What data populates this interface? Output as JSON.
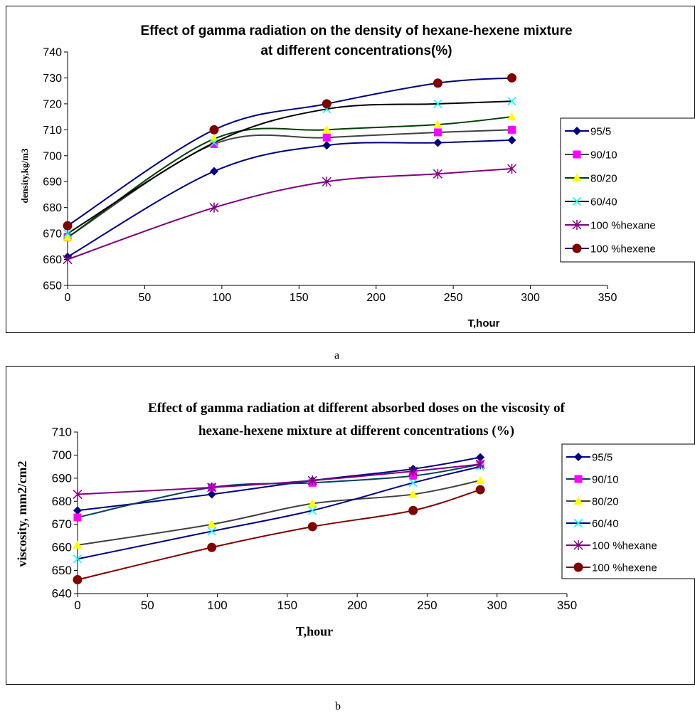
{
  "captions": {
    "a": "a",
    "b": "b"
  },
  "chart_data": [
    {
      "id": "a",
      "type": "line",
      "title_lines": [
        "Effect of gamma radiation on the density of hexane-hexene mixture",
        "at different concentrations(%)"
      ],
      "xlabel": "T,hour",
      "ylabel": "density,kg/m3",
      "xlim": [
        0,
        350
      ],
      "ylim": [
        650,
        740
      ],
      "xticks": [
        0,
        50,
        100,
        150,
        200,
        250,
        300,
        350
      ],
      "yticks": [
        650,
        660,
        670,
        680,
        690,
        700,
        710,
        720,
        730,
        740
      ],
      "grid": false,
      "legend_position": "right",
      "series": [
        {
          "name": "95/5",
          "color": "#000080",
          "marker": "diamond",
          "x": [
            0,
            95,
            168,
            240,
            288
          ],
          "y": [
            661,
            694,
            704,
            705,
            706
          ]
        },
        {
          "name": "90/10",
          "color": "#ff00ff",
          "line_color": "#404040",
          "marker": "square",
          "x": [
            0,
            95,
            168,
            240,
            288
          ],
          "y": [
            668.5,
            704.5,
            707,
            709,
            710
          ]
        },
        {
          "name": "80/20",
          "color": "#ffff00",
          "line_color": "#004000",
          "marker": "triangle",
          "x": [
            0,
            95,
            168,
            240,
            288
          ],
          "y": [
            668.5,
            706.5,
            710,
            712,
            715
          ]
        },
        {
          "name": "60/40",
          "color": "#00ffff",
          "line_color": "#000000",
          "marker": "x",
          "x": [
            0,
            95,
            168,
            240,
            288
          ],
          "y": [
            670,
            705,
            718,
            720,
            721
          ]
        },
        {
          "name": "100 %hexane",
          "color": "#800080",
          "marker": "asterisk",
          "x": [
            0,
            95,
            168,
            240,
            288
          ],
          "y": [
            660,
            680,
            690,
            693,
            695
          ]
        },
        {
          "name": "100 %hexene",
          "color": "#800000",
          "line_color": "#000080",
          "marker": "circle",
          "x": [
            0,
            95,
            168,
            240,
            288
          ],
          "y": [
            673,
            710,
            720,
            728,
            730
          ]
        }
      ]
    },
    {
      "id": "b",
      "type": "line",
      "title_lines": [
        "Effect of gamma radiation at different absorbed doses on the viscosity of",
        "hexane-hexene mixture at different concentrations (%)"
      ],
      "xlabel": "T,hour",
      "ylabel": "viscosity, mm2/cm2",
      "xlim": [
        0,
        350
      ],
      "ylim": [
        640,
        710
      ],
      "xticks": [
        0,
        50,
        100,
        150,
        200,
        250,
        300,
        350
      ],
      "yticks": [
        640,
        650,
        660,
        670,
        680,
        690,
        700,
        710
      ],
      "grid": false,
      "legend_position": "right",
      "series": [
        {
          "name": "95/5",
          "color": "#000080",
          "marker": "diamond",
          "x": [
            0,
            96,
            168,
            240,
            288
          ],
          "y": [
            676,
            683,
            689,
            694,
            699
          ]
        },
        {
          "name": "90/10",
          "color": "#ff00ff",
          "line_color": "#004060",
          "marker": "square",
          "x": [
            0,
            96,
            168,
            240,
            288
          ],
          "y": [
            673,
            686,
            688,
            691,
            696
          ]
        },
        {
          "name": "80/20",
          "color": "#ffff00",
          "line_color": "#404040",
          "marker": "triangle",
          "x": [
            0,
            96,
            168,
            240,
            288
          ],
          "y": [
            661,
            670,
            679,
            683,
            689
          ]
        },
        {
          "name": "60/40",
          "color": "#00ffff",
          "line_color": "#000080",
          "marker": "x",
          "x": [
            0,
            96,
            168,
            240,
            288
          ],
          "y": [
            655,
            667,
            676,
            688,
            695
          ]
        },
        {
          "name": "100 %hexane",
          "color": "#800080",
          "marker": "asterisk",
          "x": [
            0,
            96,
            168,
            240,
            288
          ],
          "y": [
            683,
            686,
            689,
            693,
            696
          ]
        },
        {
          "name": "100 %hexene",
          "color": "#800000",
          "marker": "circle",
          "x": [
            0,
            96,
            168,
            240,
            288
          ],
          "y": [
            646,
            660,
            669,
            676,
            685
          ]
        }
      ]
    }
  ]
}
